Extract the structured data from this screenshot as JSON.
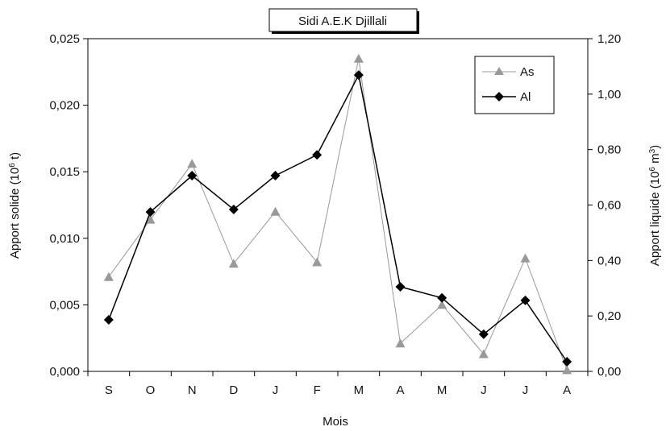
{
  "chart_data": {
    "type": "line",
    "title": "Sidi A.E.K Djillali",
    "xlabel": "Mois",
    "ylabel_left": "Apport solide (10^6 t)",
    "ylabel_right": "Apport liquide (10^6 m^3)",
    "categories": [
      "S",
      "O",
      "N",
      "D",
      "J",
      "F",
      "M",
      "A",
      "M",
      "J",
      "J",
      "A"
    ],
    "ylim_left": [
      0,
      0.025
    ],
    "ylim_right": [
      0,
      1.2
    ],
    "left_ticks": [
      "0,000",
      "0,005",
      "0,010",
      "0,015",
      "0,020",
      "0,025"
    ],
    "right_ticks": [
      "0,00",
      "0,20",
      "0,40",
      "0,60",
      "0,80",
      "1,00",
      "1,20"
    ],
    "grid": false,
    "legend_position": "top-right",
    "series": [
      {
        "name": "As",
        "axis": "left",
        "marker": "triangle",
        "color": "#999999",
        "values": [
          0.0071,
          0.0114,
          0.0156,
          0.0081,
          0.012,
          0.0082,
          0.0235,
          0.0021,
          0.005,
          0.0013,
          0.0085,
          0.0001
        ]
      },
      {
        "name": "Al",
        "axis": "right",
        "marker": "diamond",
        "color": "#000000",
        "values": [
          0.186,
          0.575,
          0.706,
          0.584,
          0.706,
          0.781,
          1.069,
          0.305,
          0.265,
          0.134,
          0.256,
          0.035
        ]
      }
    ]
  }
}
